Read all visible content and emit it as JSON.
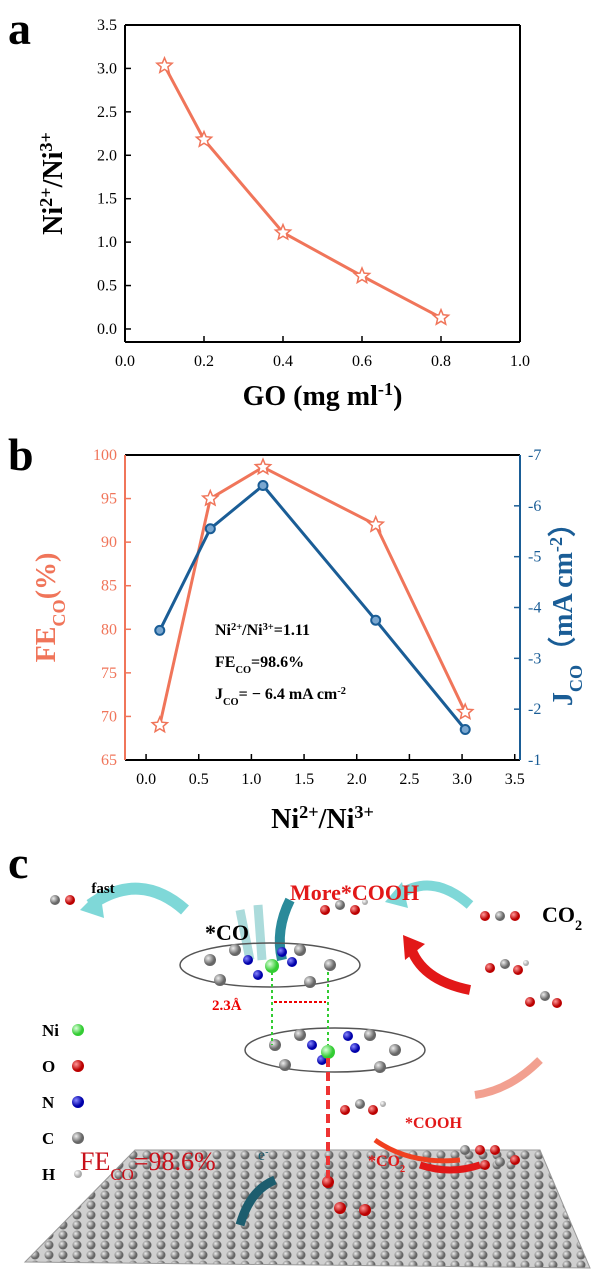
{
  "chart_data": [
    {
      "type": "line",
      "panel": "a",
      "xlabel": [
        {
          "text": "GO (mg ml"
        },
        {
          "text": "-1",
          "shift": "super"
        },
        {
          "text": ")"
        }
      ],
      "ylabel": [
        {
          "text": "Ni"
        },
        {
          "text": "2+",
          "shift": "super"
        },
        {
          "text": "/Ni"
        },
        {
          "text": "3+",
          "shift": "super"
        }
      ],
      "x": [
        0.1,
        0.2,
        0.4,
        0.6,
        0.8
      ],
      "series": [
        {
          "color": "#f0755a",
          "marker": "star",
          "values": [
            3.03,
            2.18,
            1.11,
            0.61,
            0.13
          ]
        }
      ],
      "xlim": [
        0,
        1
      ],
      "xticks": [
        {
          "value": 0,
          "label": "0.0"
        },
        0.2,
        0.4,
        0.6,
        0.8,
        {
          "value": 1,
          "label": "1.0"
        }
      ],
      "ylim": [
        -0.15,
        3.5
      ],
      "yticks": [
        {
          "value": 0,
          "label": "0.0"
        },
        0.5,
        {
          "value": 1,
          "label": "1.0"
        },
        1.5,
        {
          "value": 2,
          "label": "2.0"
        },
        2.5,
        {
          "value": 3,
          "label": "3.0"
        },
        3.5
      ]
    },
    {
      "type": "line",
      "panel": "b",
      "xlabel": [
        {
          "text": "Ni"
        },
        {
          "text": "2+",
          "shift": "super"
        },
        {
          "text": "/Ni"
        },
        {
          "text": "3+",
          "shift": "super"
        }
      ],
      "ylabel": [
        {
          "text": "FE"
        },
        {
          "text": "CO",
          "shift": "sub"
        },
        {
          "text": "(%)"
        }
      ],
      "y2label": [
        {
          "text": "J"
        },
        {
          "text": "CO",
          "shift": "sub"
        },
        {
          "text": "（mA cm"
        },
        {
          "text": "-2",
          "shift": "super"
        },
        {
          "text": "）"
        }
      ],
      "x": [
        0.13,
        0.61,
        1.11,
        2.18,
        3.03
      ],
      "series": [
        {
          "color": "#f0755a",
          "marker": "star",
          "values": [
            69,
            95,
            98.6,
            92,
            70.5
          ]
        },
        {
          "color": "#1a5d96",
          "marker": "circle",
          "axis": "y2",
          "values": [
            -3.55,
            -5.55,
            -6.4,
            -3.75,
            -1.6
          ]
        }
      ],
      "xlim": [
        -0.2,
        3.55
      ],
      "xticks": [
        {
          "value": 0,
          "label": "0.0"
        },
        0.5,
        {
          "value": 1,
          "label": "1.0"
        },
        1.5,
        {
          "value": 2,
          "label": "2.0"
        },
        2.5,
        {
          "value": 3,
          "label": "3.0"
        },
        3.5
      ],
      "ylim": [
        65,
        100
      ],
      "yticks": [
        65,
        70,
        75,
        80,
        85,
        90,
        95,
        100
      ],
      "y2lim": [
        -1,
        -7
      ],
      "y2ticks": [
        -1,
        -2,
        -3,
        -4,
        -5,
        -6,
        -7
      ],
      "annotations": [
        [
          {
            "text": "Ni"
          },
          {
            "text": "2+",
            "shift": "super"
          },
          {
            "text": "/Ni"
          },
          {
            "text": "3+",
            "shift": "super"
          },
          {
            "text": "=1.11"
          }
        ],
        [
          {
            "text": "FE"
          },
          {
            "text": "CO",
            "shift": "sub"
          },
          {
            "text": "=98.6%"
          }
        ],
        [
          {
            "text": "J"
          },
          {
            "text": "CO",
            "shift": "sub"
          },
          {
            "text": "= − 6.4 mA cm"
          },
          {
            "text": "-2",
            "shift": "super"
          }
        ]
      ]
    }
  ],
  "diagram": {
    "panel": "c",
    "fast": "fast",
    "co": "*CO",
    "more_cooh": "More*COOH",
    "co2": [
      {
        "text": "CO"
      },
      {
        "text": "2",
        "shift": "sub"
      }
    ],
    "distance": "2.3Å",
    "cooh": "*COOH",
    "co2_ads": [
      {
        "text": "*CO"
      },
      {
        "text": "2",
        "shift": "sub"
      }
    ],
    "fe": [
      {
        "text": "FE"
      },
      {
        "text": "CO",
        "shift": "sub"
      },
      {
        "text": "=98.6%"
      }
    ],
    "electron": [
      {
        "text": "e"
      },
      {
        "text": "-",
        "shift": "super"
      }
    ],
    "legend": [
      "Ni",
      "O",
      "N",
      "C",
      "H"
    ]
  }
}
